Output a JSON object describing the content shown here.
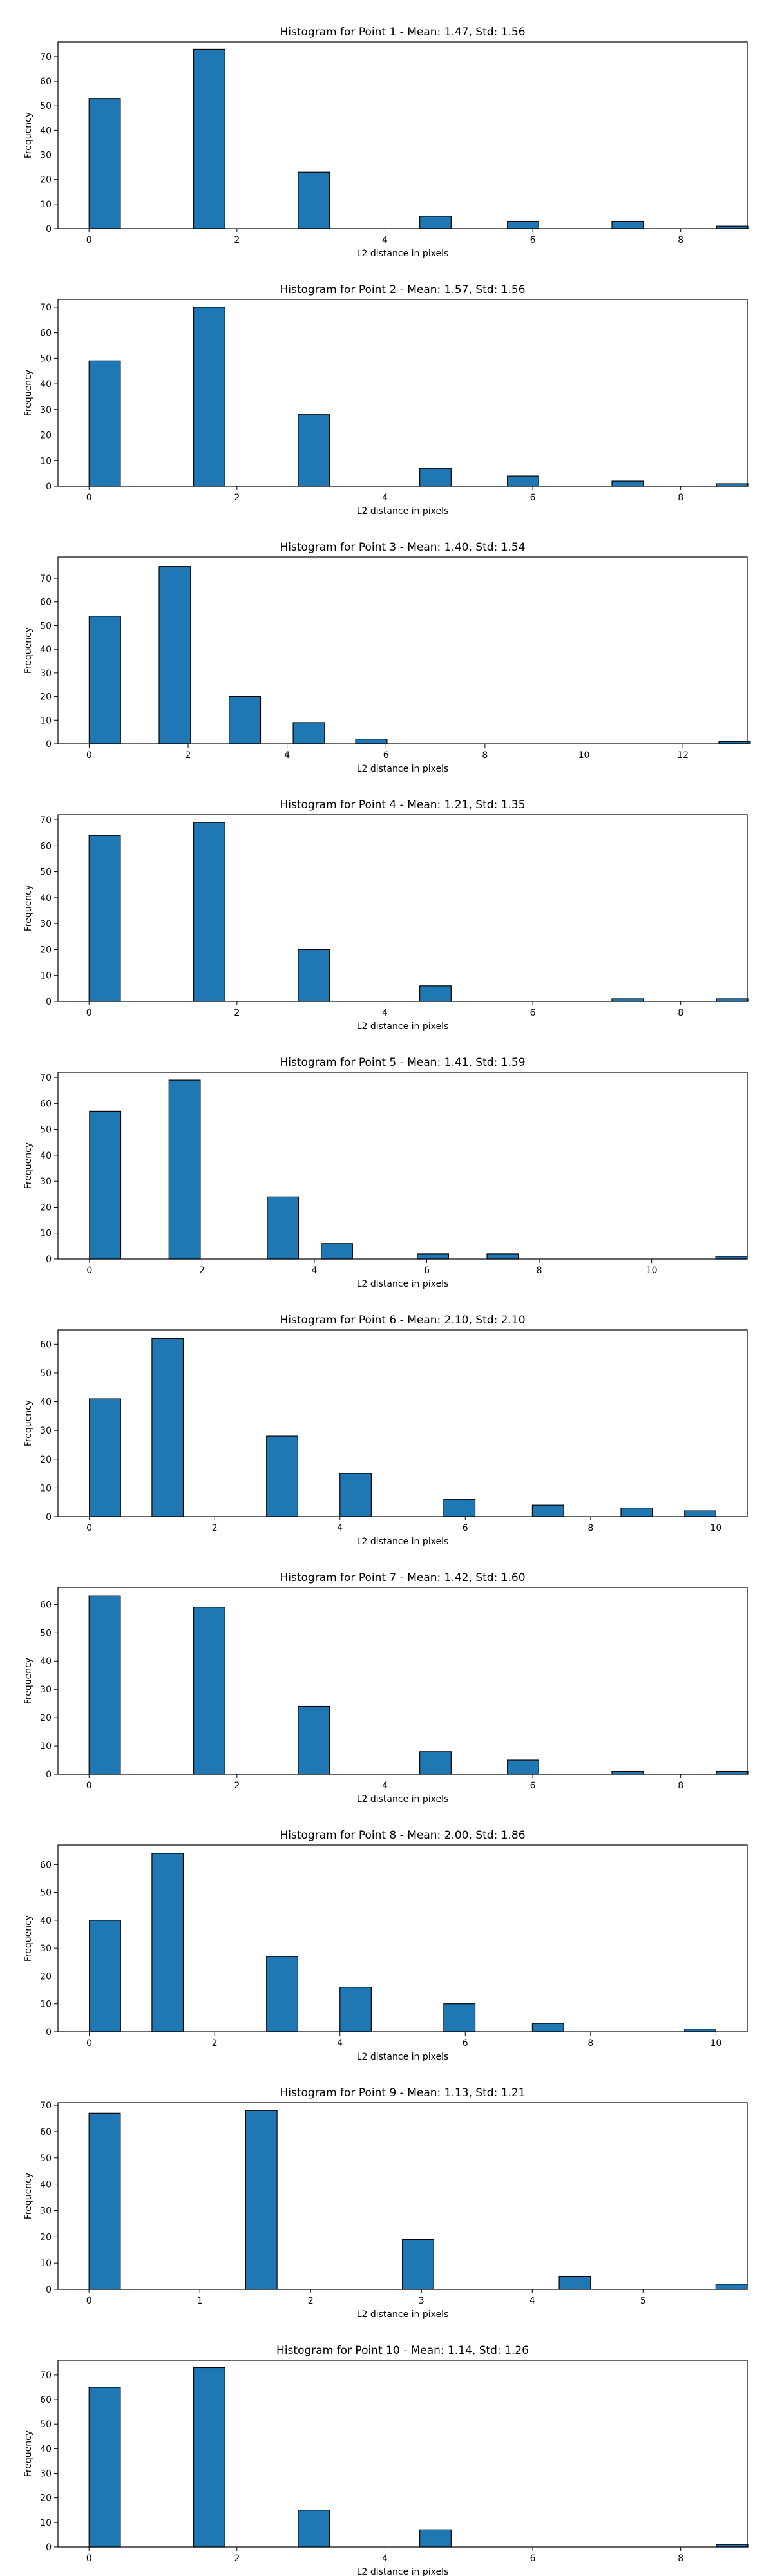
{
  "figure": {
    "bar_color": "#1f77b4",
    "edge_color": "#000000",
    "background": "#ffffff"
  },
  "chart_data": [
    {
      "type": "bar",
      "title": "Histogram for Point 1 - Mean: 1.47, Std: 1.56",
      "xlabel": "L2 distance in pixels",
      "ylabel": "Frequency",
      "xlim": [
        -0.42,
        8.9
      ],
      "ylim": [
        0,
        76
      ],
      "xticks": [
        0,
        2,
        4,
        6,
        8
      ],
      "yticks": [
        0,
        10,
        20,
        30,
        40,
        50,
        60,
        70
      ],
      "grid": false,
      "bin_width": 0.424,
      "bins": [
        {
          "x": 0.0,
          "count": 53
        },
        {
          "x": 1.414,
          "count": 73
        },
        {
          "x": 2.828,
          "count": 23
        },
        {
          "x": 4.472,
          "count": 5
        },
        {
          "x": 5.657,
          "count": 3
        },
        {
          "x": 7.071,
          "count": 3
        },
        {
          "x": 8.485,
          "count": 1
        }
      ]
    },
    {
      "type": "bar",
      "title": "Histogram for Point 2 - Mean: 1.57, Std: 1.56",
      "xlabel": "L2 distance in pixels",
      "ylabel": "Frequency",
      "xlim": [
        -0.42,
        8.9
      ],
      "ylim": [
        0,
        73
      ],
      "xticks": [
        0,
        2,
        4,
        6,
        8
      ],
      "yticks": [
        0,
        10,
        20,
        30,
        40,
        50,
        60,
        70
      ],
      "grid": false,
      "bin_width": 0.424,
      "bins": [
        {
          "x": 0.0,
          "count": 49
        },
        {
          "x": 1.414,
          "count": 70
        },
        {
          "x": 2.828,
          "count": 28
        },
        {
          "x": 4.472,
          "count": 7
        },
        {
          "x": 5.657,
          "count": 4
        },
        {
          "x": 7.071,
          "count": 2
        },
        {
          "x": 8.485,
          "count": 1
        }
      ]
    },
    {
      "type": "bar",
      "title": "Histogram for Point 3 - Mean: 1.40, Std: 1.54",
      "xlabel": "L2 distance in pixels",
      "ylabel": "Frequency",
      "xlim": [
        -0.63,
        13.3
      ],
      "ylim": [
        0,
        79
      ],
      "xticks": [
        0,
        2,
        4,
        6,
        8,
        10,
        12
      ],
      "yticks": [
        0,
        10,
        20,
        30,
        40,
        50,
        60,
        70
      ],
      "grid": false,
      "bin_width": 0.636,
      "bins": [
        {
          "x": 0.0,
          "count": 54
        },
        {
          "x": 1.414,
          "count": 75
        },
        {
          "x": 2.828,
          "count": 20
        },
        {
          "x": 4.123,
          "count": 9
        },
        {
          "x": 5.385,
          "count": 2
        },
        {
          "x": 12.728,
          "count": 1
        }
      ]
    },
    {
      "type": "bar",
      "title": "Histogram for Point 4 - Mean: 1.21, Std: 1.35",
      "xlabel": "L2 distance in pixels",
      "ylabel": "Frequency",
      "xlim": [
        -0.42,
        8.9
      ],
      "ylim": [
        0,
        72
      ],
      "xticks": [
        0,
        2,
        4,
        6,
        8
      ],
      "yticks": [
        0,
        10,
        20,
        30,
        40,
        50,
        60,
        70
      ],
      "grid": false,
      "bin_width": 0.424,
      "bins": [
        {
          "x": 0.0,
          "count": 64
        },
        {
          "x": 1.414,
          "count": 69
        },
        {
          "x": 2.828,
          "count": 20
        },
        {
          "x": 4.472,
          "count": 6
        },
        {
          "x": 7.071,
          "count": 1
        },
        {
          "x": 8.485,
          "count": 1
        }
      ]
    },
    {
      "type": "bar",
      "title": "Histogram for Point 5 - Mean: 1.41, Std: 1.59",
      "xlabel": "L2 distance in pixels",
      "ylabel": "Frequency",
      "xlim": [
        -0.56,
        11.7
      ],
      "ylim": [
        0,
        72
      ],
      "xticks": [
        0,
        2,
        4,
        6,
        8,
        10
      ],
      "yticks": [
        0,
        10,
        20,
        30,
        40,
        50,
        60,
        70
      ],
      "grid": false,
      "bin_width": 0.557,
      "bins": [
        {
          "x": 0.0,
          "count": 57
        },
        {
          "x": 1.414,
          "count": 69
        },
        {
          "x": 3.162,
          "count": 24
        },
        {
          "x": 4.123,
          "count": 6
        },
        {
          "x": 5.831,
          "count": 2
        },
        {
          "x": 7.071,
          "count": 2
        },
        {
          "x": 11.14,
          "count": 1
        }
      ]
    },
    {
      "type": "bar",
      "title": "Histogram for Point 6 - Mean: 2.10, Std: 2.10",
      "xlabel": "L2 distance in pixels",
      "ylabel": "Frequency",
      "xlim": [
        -0.5,
        10.5
      ],
      "ylim": [
        0,
        65
      ],
      "xticks": [
        0,
        2,
        4,
        6,
        8,
        10
      ],
      "yticks": [
        0,
        10,
        20,
        30,
        40,
        50,
        60
      ],
      "grid": false,
      "bin_width": 0.5,
      "bins": [
        {
          "x": 0.0,
          "count": 41
        },
        {
          "x": 1.0,
          "count": 62
        },
        {
          "x": 2.828,
          "count": 28
        },
        {
          "x": 4.0,
          "count": 15
        },
        {
          "x": 5.657,
          "count": 6
        },
        {
          "x": 7.071,
          "count": 4
        },
        {
          "x": 8.485,
          "count": 3
        },
        {
          "x": 9.5,
          "count": 2
        }
      ]
    },
    {
      "type": "bar",
      "title": "Histogram for Point 7 - Mean: 1.42, Std: 1.60",
      "xlabel": "L2 distance in pixels",
      "ylabel": "Frequency",
      "xlim": [
        -0.42,
        8.9
      ],
      "ylim": [
        0,
        66
      ],
      "xticks": [
        0,
        2,
        4,
        6,
        8
      ],
      "yticks": [
        0,
        10,
        20,
        30,
        40,
        50,
        60
      ],
      "grid": false,
      "bin_width": 0.424,
      "bins": [
        {
          "x": 0.0,
          "count": 63
        },
        {
          "x": 1.414,
          "count": 59
        },
        {
          "x": 2.828,
          "count": 24
        },
        {
          "x": 4.472,
          "count": 8
        },
        {
          "x": 5.657,
          "count": 5
        },
        {
          "x": 7.071,
          "count": 1
        },
        {
          "x": 8.485,
          "count": 1
        }
      ]
    },
    {
      "type": "bar",
      "title": "Histogram for Point 8 - Mean: 2.00, Std: 1.86",
      "xlabel": "L2 distance in pixels",
      "ylabel": "Frequency",
      "xlim": [
        -0.5,
        10.5
      ],
      "ylim": [
        0,
        67
      ],
      "xticks": [
        0,
        2,
        4,
        6,
        8,
        10
      ],
      "yticks": [
        0,
        10,
        20,
        30,
        40,
        50,
        60
      ],
      "grid": false,
      "bin_width": 0.5,
      "bins": [
        {
          "x": 0.0,
          "count": 40
        },
        {
          "x": 1.0,
          "count": 64
        },
        {
          "x": 2.828,
          "count": 27
        },
        {
          "x": 4.0,
          "count": 16
        },
        {
          "x": 5.657,
          "count": 10
        },
        {
          "x": 7.071,
          "count": 3
        },
        {
          "x": 9.5,
          "count": 1
        }
      ]
    },
    {
      "type": "bar",
      "title": "Histogram for Point 9 - Mean: 1.13, Std: 1.21",
      "xlabel": "L2 distance in pixels",
      "ylabel": "Frequency",
      "xlim": [
        -0.28,
        5.94
      ],
      "ylim": [
        0,
        71
      ],
      "xticks": [
        0,
        1,
        2,
        3,
        4,
        5
      ],
      "yticks": [
        0,
        10,
        20,
        30,
        40,
        50,
        60,
        70
      ],
      "grid": false,
      "bin_width": 0.283,
      "bins": [
        {
          "x": 0.0,
          "count": 67
        },
        {
          "x": 1.414,
          "count": 68
        },
        {
          "x": 2.828,
          "count": 19
        },
        {
          "x": 4.243,
          "count": 5
        },
        {
          "x": 5.657,
          "count": 2
        }
      ]
    },
    {
      "type": "bar",
      "title": "Histogram for Point 10 - Mean: 1.14, Std: 1.26",
      "xlabel": "L2 distance in pixels",
      "ylabel": "Frequency",
      "xlim": [
        -0.42,
        8.9
      ],
      "ylim": [
        0,
        76
      ],
      "xticks": [
        0,
        2,
        4,
        6,
        8
      ],
      "yticks": [
        0,
        10,
        20,
        30,
        40,
        50,
        60,
        70
      ],
      "grid": false,
      "bin_width": 0.424,
      "bins": [
        {
          "x": 0.0,
          "count": 65
        },
        {
          "x": 1.414,
          "count": 73
        },
        {
          "x": 2.828,
          "count": 15
        },
        {
          "x": 4.472,
          "count": 7
        },
        {
          "x": 8.485,
          "count": 1
        }
      ]
    }
  ]
}
